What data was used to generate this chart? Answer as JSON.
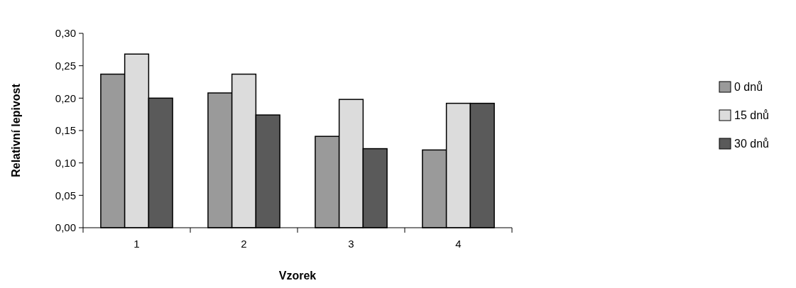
{
  "chart_data": {
    "type": "bar",
    "xlabel": "Vzorek",
    "ylabel": "Relativní lepivost",
    "categories": [
      "1",
      "2",
      "3",
      "4"
    ],
    "series": [
      {
        "name": "0 dnů",
        "color": "#9a9a9a",
        "values": [
          0.237,
          0.208,
          0.141,
          0.12
        ]
      },
      {
        "name": "15 dnů",
        "color": "#dcdcdc",
        "values": [
          0.268,
          0.237,
          0.198,
          0.192
        ]
      },
      {
        "name": "30 dnů",
        "color": "#5a5a5a",
        "values": [
          0.2,
          0.174,
          0.122,
          0.192
        ]
      }
    ],
    "ylim": [
      0,
      0.3
    ],
    "yticks": [
      {
        "value": 0,
        "label": "0,00"
      },
      {
        "value": 0.05,
        "label": "0,05"
      },
      {
        "value": 0.1,
        "label": "0,10"
      },
      {
        "value": 0.15,
        "label": "0,15"
      },
      {
        "value": 0.2,
        "label": "0,20"
      },
      {
        "value": 0.25,
        "label": "0,25"
      },
      {
        "value": 0.3,
        "label": "0,30"
      }
    ],
    "legend": "right",
    "grid": false
  }
}
